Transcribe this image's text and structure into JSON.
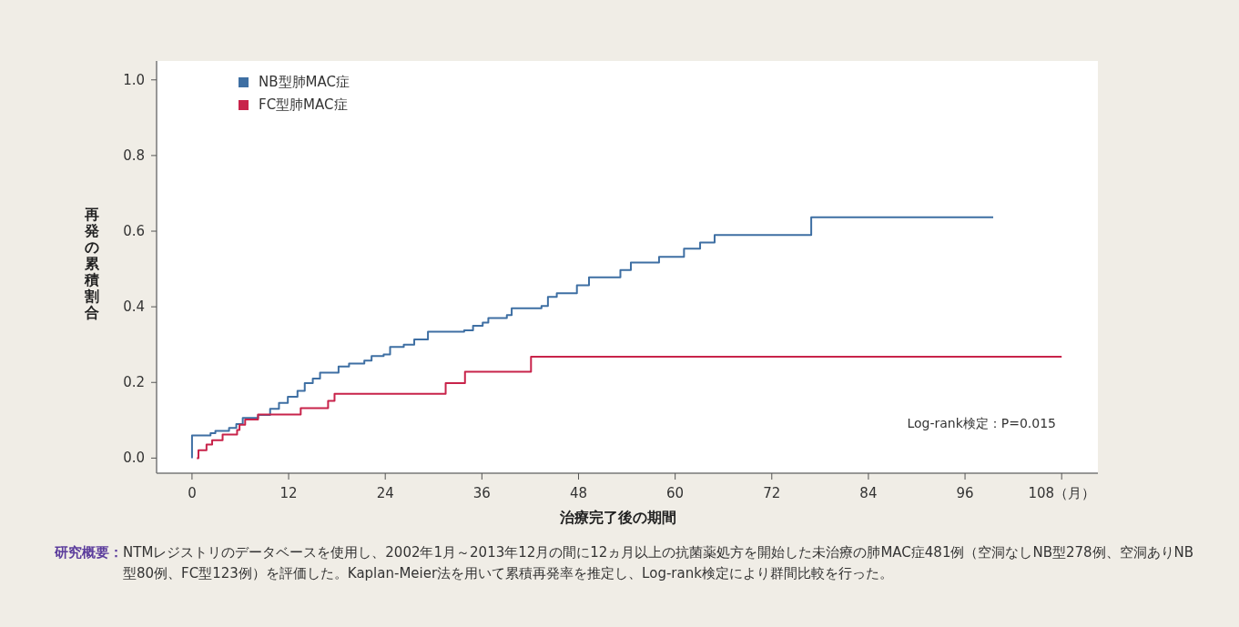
{
  "chart_data": {
    "type": "step",
    "xlabel": "治療完了後の期間",
    "ylabel": "再発の累積割合",
    "xlim": [
      -4.4,
      112.5
    ],
    "ylim": [
      -0.04,
      1.05
    ],
    "xticks": [
      0,
      12,
      24,
      36,
      48,
      60,
      72,
      84,
      96,
      {
        "value": 108,
        "label": "108（月）"
      }
    ],
    "yticks": [
      {
        "value": 0,
        "label": "0.0"
      },
      {
        "value": 0.2,
        "label": "0.2"
      },
      {
        "value": 0.4,
        "label": "0.4"
      },
      {
        "value": 0.6,
        "label": "0.6"
      },
      {
        "value": 0.8,
        "label": "0.8"
      },
      {
        "value": 1,
        "label": "1.0"
      }
    ],
    "grid": false,
    "legend": "top left",
    "marker": "none",
    "line_style": "solid",
    "series": [
      {
        "name": "NB型肺MAC症",
        "color": "#3e6fa3",
        "x": [
          0,
          0,
          2.3,
          2.9,
          4.6,
          5.5,
          6.3,
          8.2,
          9.7,
          10.8,
          11.9,
          13.1,
          14,
          15,
          15.9,
          18.2,
          19.5,
          21.4,
          22.3,
          23.8,
          24.6,
          26.3,
          27.6,
          29.3,
          33.8,
          34.9,
          36.1,
          36.8,
          39.1,
          39.7,
          43.4,
          44.2,
          45.3,
          47.8,
          49.3,
          53.2,
          54.5,
          58,
          61.1,
          63.1,
          64.9,
          76.9,
          99.5
        ],
        "values": [
          0,
          0.06,
          0.066,
          0.072,
          0.08,
          0.09,
          0.106,
          0.114,
          0.13,
          0.146,
          0.162,
          0.178,
          0.198,
          0.21,
          0.226,
          0.242,
          0.25,
          0.258,
          0.27,
          0.274,
          0.294,
          0.3,
          0.314,
          0.334,
          0.338,
          0.35,
          0.358,
          0.37,
          0.378,
          0.396,
          0.402,
          0.426,
          0.436,
          0.457,
          0.478,
          0.497,
          0.517,
          0.532,
          0.554,
          0.57,
          0.59,
          0.637,
          0.637
        ]
      },
      {
        "name": "FC型肺MAC症",
        "color": "#c8234a",
        "x": [
          0.6,
          0.8,
          1.8,
          2.5,
          3.8,
          5.6,
          5.9,
          6.6,
          8.2,
          13.5,
          16.9,
          17.7,
          31.5,
          33.9,
          42.1,
          108
        ],
        "values": [
          0,
          0.021,
          0.036,
          0.047,
          0.062,
          0.074,
          0.088,
          0.102,
          0.115,
          0.132,
          0.151,
          0.17,
          0.198,
          0.228,
          0.268,
          0.268
        ]
      }
    ],
    "annotations": [
      "Log-rank検定：P=0.015",
      "研究概要：",
      "NTMレジストリのデータベースを使用し、2002年1月～2013年12月の間に12ヵ月以上の抗菌薬処方を開始した未治療の肺MAC症481例（空洞なしNB型278例、空洞ありNB型80例、FC型123例）を評価した。Kaplan-Meier法を用いて累積再発率を推定し、Log-rank検定により群間比較を行った。"
    ]
  }
}
